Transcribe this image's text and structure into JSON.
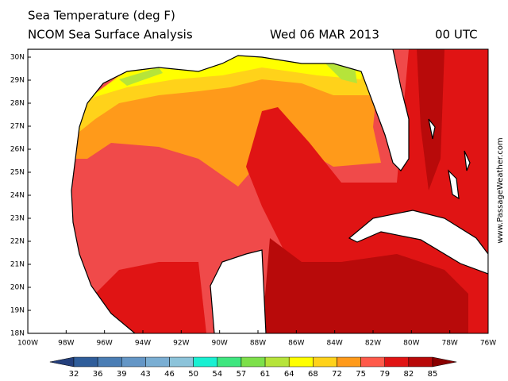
{
  "header": {
    "title": "Sea Temperature (deg F)",
    "subtitle": "NCOM Sea Surface Analysis",
    "date": "Wed 06 MAR 2013",
    "time": "00 UTC"
  },
  "map": {
    "lat_labels": [
      "30N",
      "29N",
      "28N",
      "27N",
      "26N",
      "25N",
      "24N",
      "23N",
      "22N",
      "21N",
      "20N",
      "19N",
      "18N"
    ],
    "lon_labels": [
      "100W",
      "98W",
      "96W",
      "94W",
      "92W",
      "90W",
      "88W",
      "86W",
      "84W",
      "82W",
      "80W",
      "78W",
      "76W"
    ]
  },
  "colorbar": {
    "ticks": [
      32,
      36,
      39,
      43,
      46,
      50,
      54,
      57,
      61,
      64,
      68,
      72,
      75,
      79,
      82,
      85
    ],
    "colors": [
      "#243f7c",
      "#2f5d9a",
      "#4a7db4",
      "#6496c6",
      "#7aaed3",
      "#8cc3da",
      "#19f0d2",
      "#3fe67f",
      "#7de04a",
      "#b6e43a",
      "#ffff00",
      "#ffd21a",
      "#ff9a1a",
      "#ff5a4a",
      "#e01414",
      "#b80a0a",
      "#8a0000"
    ]
  },
  "watermark": "www.PassageWeather.com"
}
